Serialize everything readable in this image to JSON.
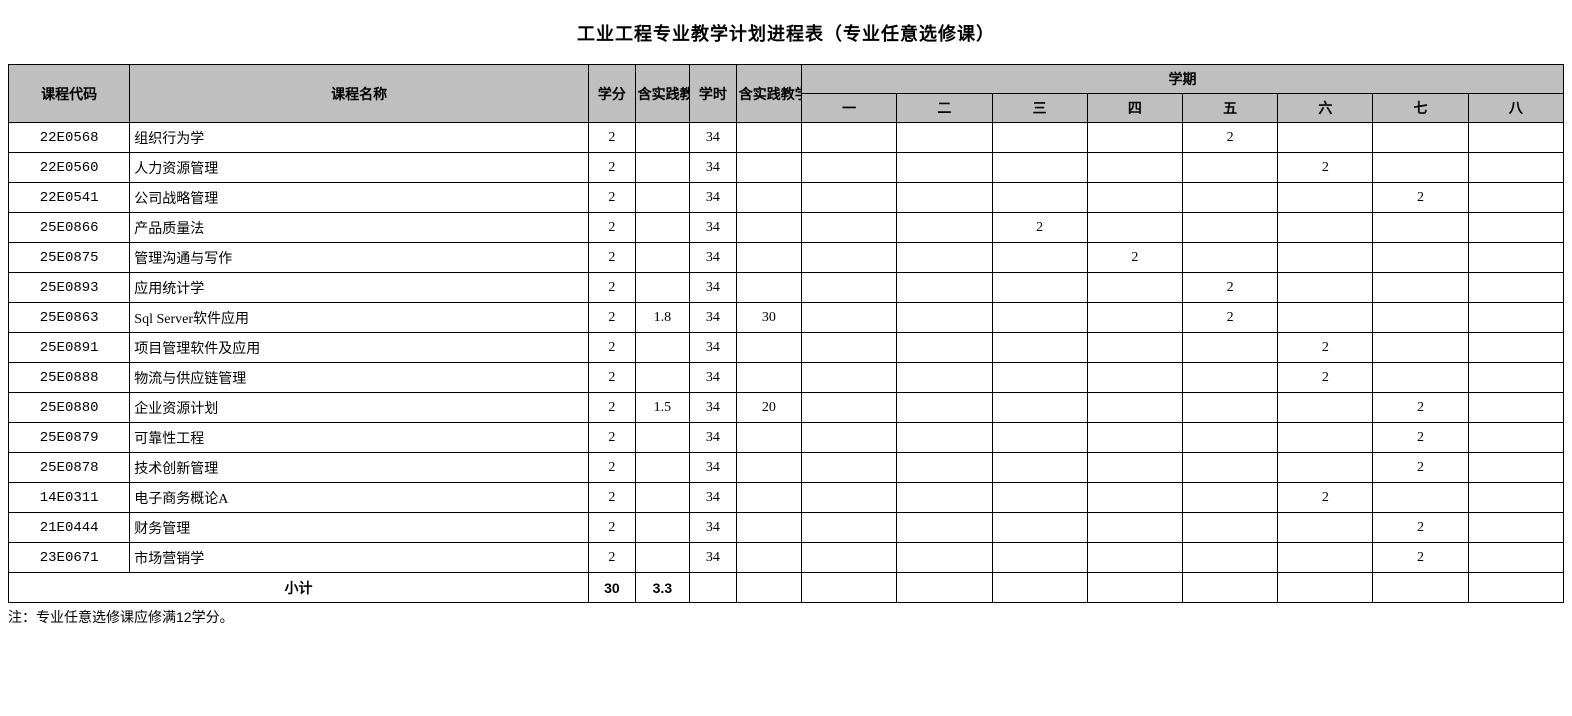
{
  "title": "工业工程专业教学计划进程表（专业任意选修课）",
  "headers": {
    "code": "课程代码",
    "name": "课程名称",
    "credit": "学分",
    "practice_credit": "含实践教学学分",
    "hours": "学时",
    "practice_hours": "含实践教学学时",
    "semester": "学期",
    "sems": [
      "一",
      "二",
      "三",
      "四",
      "五",
      "六",
      "七",
      "八"
    ]
  },
  "rows": [
    {
      "code": "22E0568",
      "name": "组织行为学",
      "credit": "2",
      "pcredit": "",
      "hours": "34",
      "phours": "",
      "s": [
        "",
        "",
        "",
        "",
        "2",
        "",
        "",
        ""
      ]
    },
    {
      "code": "22E0560",
      "name": "人力资源管理",
      "credit": "2",
      "pcredit": "",
      "hours": "34",
      "phours": "",
      "s": [
        "",
        "",
        "",
        "",
        "",
        "2",
        "",
        ""
      ]
    },
    {
      "code": "22E0541",
      "name": "公司战略管理",
      "credit": "2",
      "pcredit": "",
      "hours": "34",
      "phours": "",
      "s": [
        "",
        "",
        "",
        "",
        "",
        "",
        "2",
        ""
      ]
    },
    {
      "code": "25E0866",
      "name": "产品质量法",
      "credit": "2",
      "pcredit": "",
      "hours": "34",
      "phours": "",
      "s": [
        "",
        "",
        "2",
        "",
        "",
        "",
        "",
        ""
      ]
    },
    {
      "code": "25E0875",
      "name": "管理沟通与写作",
      "credit": "2",
      "pcredit": "",
      "hours": "34",
      "phours": "",
      "s": [
        "",
        "",
        "",
        "2",
        "",
        "",
        "",
        ""
      ]
    },
    {
      "code": "25E0893",
      "name": "应用统计学",
      "credit": "2",
      "pcredit": "",
      "hours": "34",
      "phours": "",
      "s": [
        "",
        "",
        "",
        "",
        "2",
        "",
        "",
        ""
      ]
    },
    {
      "code": "25E0863",
      "name": "Sql Server软件应用",
      "credit": "2",
      "pcredit": "1.8",
      "hours": "34",
      "phours": "30",
      "s": [
        "",
        "",
        "",
        "",
        "2",
        "",
        "",
        ""
      ]
    },
    {
      "code": "25E0891",
      "name": "项目管理软件及应用",
      "credit": "2",
      "pcredit": "",
      "hours": "34",
      "phours": "",
      "s": [
        "",
        "",
        "",
        "",
        "",
        "2",
        "",
        ""
      ]
    },
    {
      "code": "25E0888",
      "name": "物流与供应链管理",
      "credit": "2",
      "pcredit": "",
      "hours": "34",
      "phours": "",
      "s": [
        "",
        "",
        "",
        "",
        "",
        "2",
        "",
        ""
      ]
    },
    {
      "code": "25E0880",
      "name": "企业资源计划",
      "credit": "2",
      "pcredit": "1.5",
      "hours": "34",
      "phours": "20",
      "s": [
        "",
        "",
        "",
        "",
        "",
        "",
        "2",
        ""
      ]
    },
    {
      "code": "25E0879",
      "name": "可靠性工程",
      "credit": "2",
      "pcredit": "",
      "hours": "34",
      "phours": "",
      "s": [
        "",
        "",
        "",
        "",
        "",
        "",
        "2",
        ""
      ]
    },
    {
      "code": "25E0878",
      "name": "技术创新管理",
      "credit": "2",
      "pcredit": "",
      "hours": "34",
      "phours": "",
      "s": [
        "",
        "",
        "",
        "",
        "",
        "",
        "2",
        ""
      ]
    },
    {
      "code": "14E0311",
      "name": "电子商务概论A",
      "credit": "2",
      "pcredit": "",
      "hours": "34",
      "phours": "",
      "s": [
        "",
        "",
        "",
        "",
        "",
        "2",
        "",
        ""
      ]
    },
    {
      "code": "21E0444",
      "name": "财务管理",
      "credit": "2",
      "pcredit": "",
      "hours": "34",
      "phours": "",
      "s": [
        "",
        "",
        "",
        "",
        "",
        "",
        "2",
        ""
      ]
    },
    {
      "code": "23E0671",
      "name": "市场营销学",
      "credit": "2",
      "pcredit": "",
      "hours": "34",
      "phours": "",
      "s": [
        "",
        "",
        "",
        "",
        "",
        "",
        "2",
        ""
      ]
    }
  ],
  "subtotal": {
    "label": "小计",
    "credit": "30",
    "pcredit": "3.3",
    "hours": "",
    "phours": "",
    "s": [
      "",
      "",
      "",
      "",
      "",
      "",
      "",
      ""
    ]
  },
  "note": "注：专业任意选修课应修满12学分。",
  "style": {
    "header_bg": "#bfbfbf",
    "border_color": "#000000",
    "title_fontsize": 18,
    "cell_fontsize": 14
  }
}
